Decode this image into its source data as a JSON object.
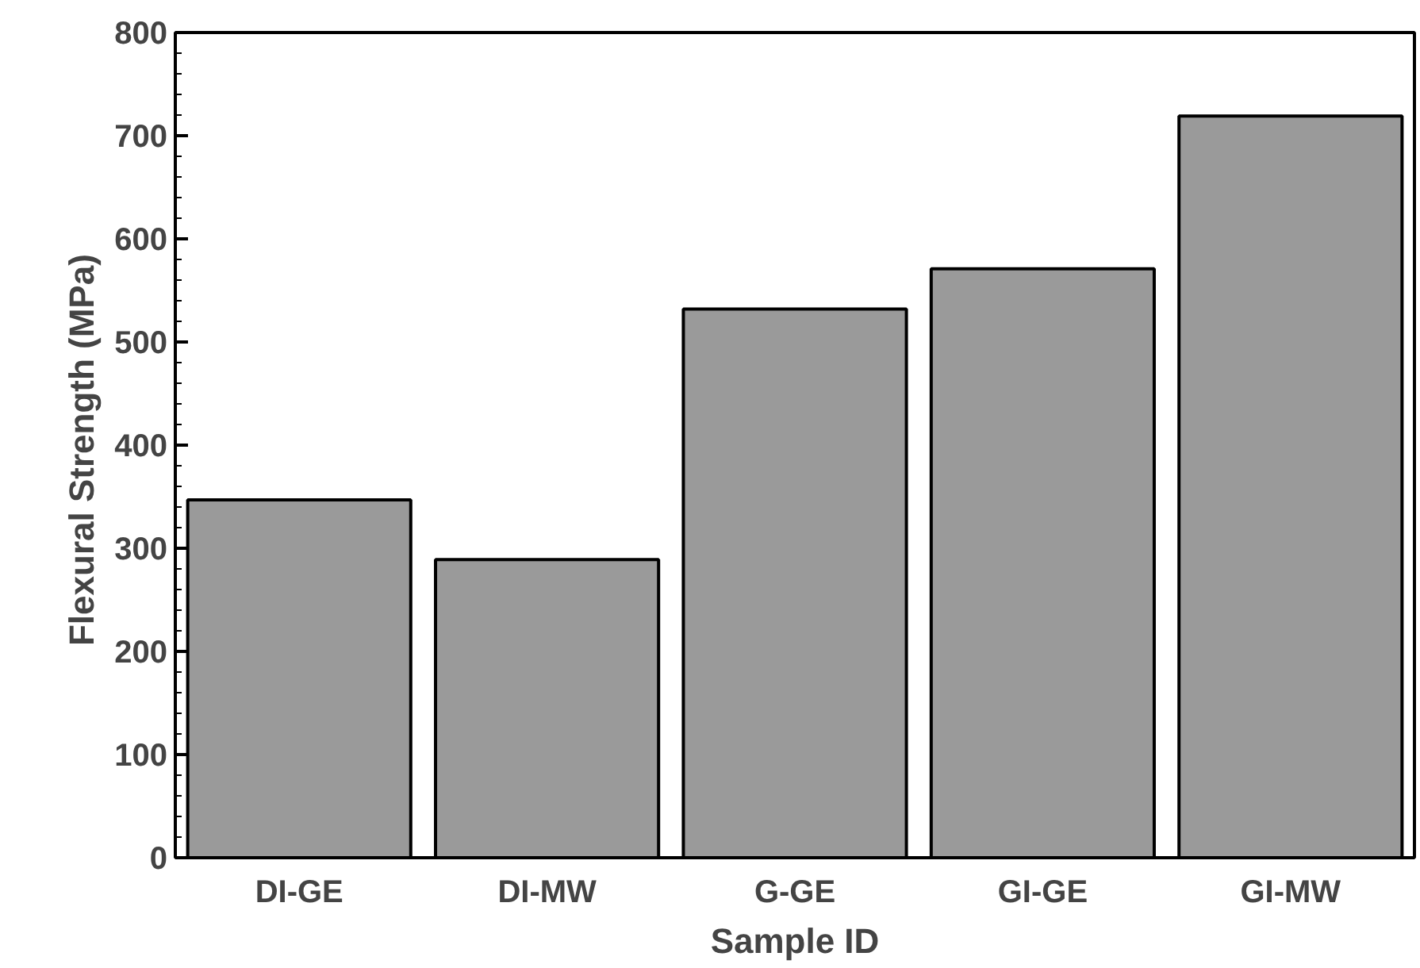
{
  "chart_data": {
    "type": "bar",
    "xlabel": "Sample ID",
    "ylabel": "Flexural Strength  (MPa)",
    "categories": [
      "DI-GE",
      "DI-MW",
      "G-GE",
      "GI-GE",
      "GI-MW"
    ],
    "values": [
      347,
      289,
      532,
      571,
      719
    ],
    "color": "#9a9a9a",
    "ylim": [
      0,
      800
    ],
    "yticks": [
      0,
      100,
      200,
      300,
      400,
      500,
      600,
      700,
      800
    ],
    "grid": false
  }
}
